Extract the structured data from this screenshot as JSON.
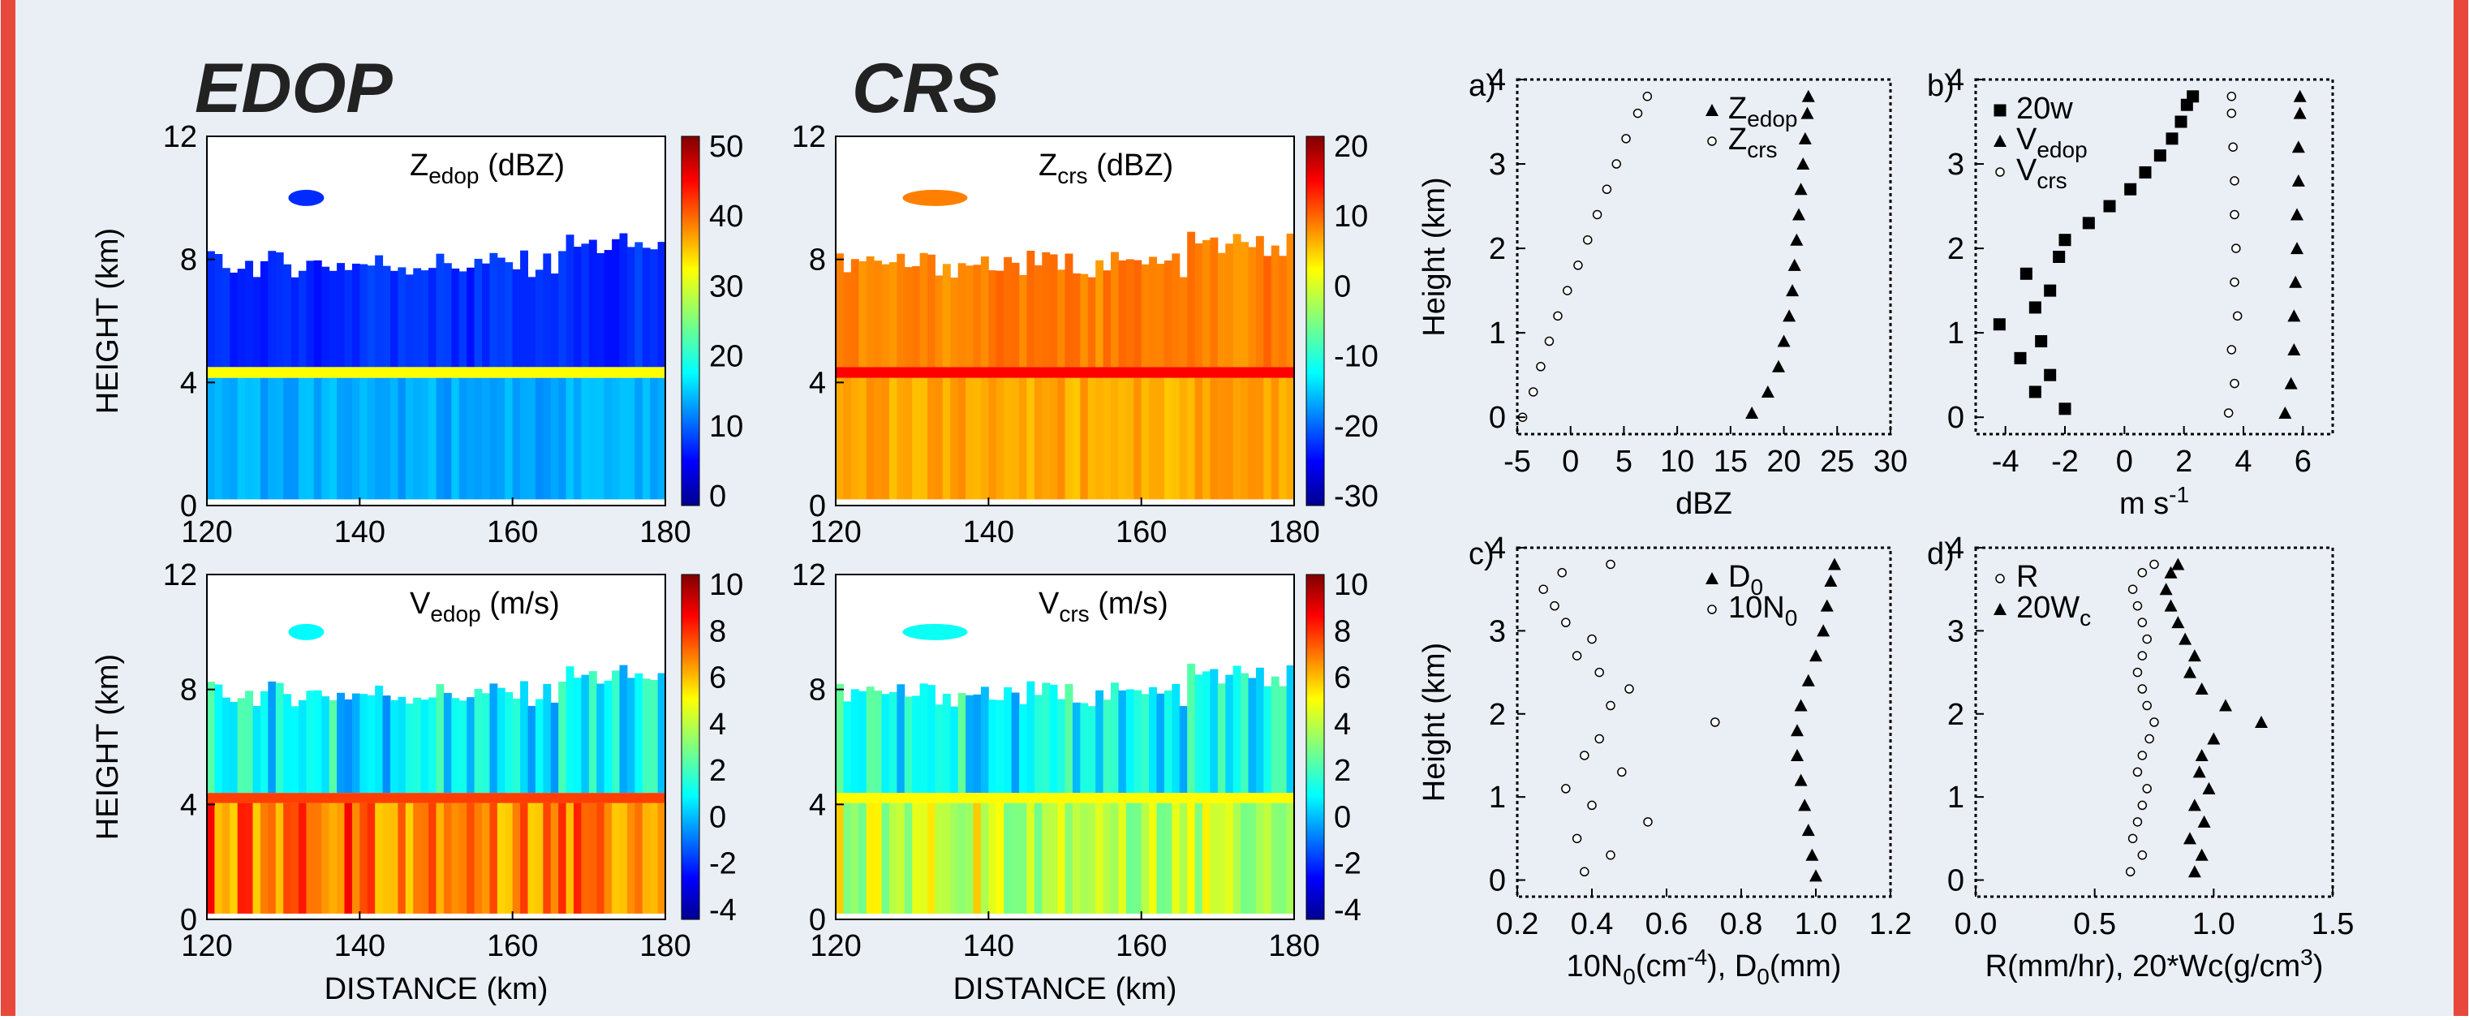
{
  "colors": {
    "border_red": "#e8473b",
    "background": "#e9eff5",
    "title_dark": "#222222"
  },
  "page": {
    "col_title_left": "EDOP",
    "col_title_right": "CRS"
  },
  "chart_data": [
    {
      "id": "zedop",
      "type": "heatmap",
      "title_main": "Z",
      "title_sub": "edop",
      "title_unit": "(dBZ)",
      "xlabel": "",
      "ylabel": "HEIGHT (km)",
      "xticks": [
        120,
        140,
        160,
        180
      ],
      "yticks": [
        0,
        4,
        8,
        12
      ],
      "xlim": [
        120,
        180
      ],
      "ylim": [
        0,
        12
      ],
      "colorbar": {
        "ticks": [
          "50",
          "40",
          "30",
          "20",
          "10",
          "0"
        ],
        "range": [
          0,
          50
        ]
      },
      "field": {
        "band": 20,
        "melt_layer_height": 4.3,
        "melt_value": 32,
        "below_value": 14,
        "above_value": 8,
        "top_height": 7.6
      }
    },
    {
      "id": "zcrs",
      "type": "heatmap",
      "title_main": "Z",
      "title_sub": "crs",
      "title_unit": "(dBZ)",
      "xlabel": "",
      "ylabel": "",
      "xticks": [
        120,
        140,
        160,
        180
      ],
      "yticks": [
        0,
        4,
        8,
        12
      ],
      "xlim": [
        120,
        180
      ],
      "ylim": [
        0,
        12
      ],
      "colorbar": {
        "ticks": [
          "20",
          "10",
          "0",
          "-10",
          "-20",
          "-30"
        ],
        "range": [
          -30,
          20
        ]
      },
      "field": {
        "band": 20,
        "melt_layer_height": 4.3,
        "melt_value": 14,
        "below_value": 6,
        "above_value": 8,
        "top_height": 7.6
      }
    },
    {
      "id": "vedop",
      "type": "heatmap",
      "title_main": "V",
      "title_sub": "edop",
      "title_unit": "(m/s)",
      "xlabel": "DISTANCE (km)",
      "ylabel": "HEIGHT (km)",
      "xticks": [
        120,
        140,
        160,
        180
      ],
      "yticks": [
        0,
        4,
        8,
        12
      ],
      "xlim": [
        120,
        180
      ],
      "ylim": [
        0,
        12
      ],
      "colorbar": {
        "ticks": [
          "10",
          "8",
          "6",
          "4",
          "2",
          "0",
          "-2",
          "-4"
        ],
        "range": [
          -4,
          10
        ]
      },
      "field": {
        "band": 20,
        "melt_layer_height": 4.2,
        "melt_value": 7.5,
        "below_value": 7,
        "above_value": 1,
        "top_height": 7.6
      }
    },
    {
      "id": "vcrs",
      "type": "heatmap",
      "title_main": "V",
      "title_sub": "crs",
      "title_unit": "(m/s)",
      "xlabel": "DISTANCE (km)",
      "ylabel": "",
      "xticks": [
        120,
        140,
        160,
        180
      ],
      "yticks": [
        0,
        4,
        8,
        12
      ],
      "xlim": [
        120,
        180
      ],
      "ylim": [
        0,
        12
      ],
      "colorbar": {
        "ticks": [
          "10",
          "8",
          "6",
          "4",
          "2",
          "0",
          "-2",
          "-4"
        ],
        "range": [
          -4,
          10
        ]
      },
      "field": {
        "band": 20,
        "melt_layer_height": 4.2,
        "melt_value": 5,
        "below_value": 4.2,
        "above_value": 1.2,
        "top_height": 7.6
      }
    },
    {
      "id": "a",
      "type": "scatter",
      "panel_label": "a)",
      "xlabel": "dBZ",
      "ylabel": "Height (km)",
      "xlim": [
        -5,
        30
      ],
      "ylim": [
        -0.2,
        4.0
      ],
      "xticks": [
        "-5",
        "0",
        "5",
        "10",
        "15",
        "20",
        "25",
        "30"
      ],
      "yticks": [
        "0",
        "1",
        "2",
        "3",
        "4"
      ],
      "legend": [
        {
          "marker": "triangle",
          "main": "Z",
          "sub": "edop"
        },
        {
          "marker": "circle",
          "main": "Z",
          "sub": "crs"
        }
      ],
      "series": [
        {
          "marker": "triangle",
          "y": [
            0.05,
            0.3,
            0.6,
            0.9,
            1.2,
            1.5,
            1.8,
            2.1,
            2.4,
            2.7,
            3.0,
            3.3,
            3.6,
            3.8
          ],
          "x": [
            17,
            18.5,
            19.5,
            20,
            20.5,
            20.8,
            21,
            21.2,
            21.4,
            21.6,
            21.8,
            22,
            22.2,
            22.3
          ]
        },
        {
          "marker": "circle",
          "y": [
            0.0,
            0.3,
            0.6,
            0.9,
            1.2,
            1.5,
            1.8,
            2.1,
            2.4,
            2.7,
            3.0,
            3.3,
            3.6,
            3.8
          ],
          "x": [
            -4.5,
            -3.5,
            -2.8,
            -2,
            -1.2,
            -0.3,
            0.7,
            1.6,
            2.5,
            3.4,
            4.3,
            5.2,
            6.3,
            7.2
          ]
        }
      ]
    },
    {
      "id": "b",
      "type": "scatter",
      "panel_label": "b)",
      "xlabel": "m s",
      "xlabel_sup": "-1",
      "ylabel": "",
      "xlim": [
        -5,
        7
      ],
      "ylim": [
        -0.2,
        4.0
      ],
      "xticks": [
        "-4",
        "-2",
        "0",
        "2",
        "4",
        "6"
      ],
      "yticks": [
        "0",
        "1",
        "2",
        "3",
        "4"
      ],
      "legend": [
        {
          "marker": "square",
          "main": "20w",
          "sub": ""
        },
        {
          "marker": "triangle",
          "main": "V",
          "sub": "edop"
        },
        {
          "marker": "circle",
          "main": "V",
          "sub": "crs"
        }
      ],
      "series": [
        {
          "marker": "square",
          "y": [
            0.1,
            0.3,
            0.5,
            0.7,
            0.9,
            1.1,
            1.3,
            1.5,
            1.7,
            1.9,
            2.1,
            2.3,
            2.5,
            2.7,
            2.9,
            3.1,
            3.3,
            3.5,
            3.7,
            3.8
          ],
          "x": [
            -2,
            -3,
            -2.5,
            -3.5,
            -2.8,
            -4.2,
            -3,
            -2.5,
            -3.3,
            -2.2,
            -2,
            -1.2,
            -0.5,
            0.2,
            0.7,
            1.2,
            1.6,
            1.9,
            2.1,
            2.3
          ]
        },
        {
          "marker": "triangle",
          "y": [
            0.05,
            0.4,
            0.8,
            1.2,
            1.6,
            2.0,
            2.4,
            2.8,
            3.2,
            3.6,
            3.8
          ],
          "x": [
            5.4,
            5.6,
            5.7,
            5.7,
            5.75,
            5.8,
            5.8,
            5.85,
            5.85,
            5.9,
            5.9
          ]
        },
        {
          "marker": "circle",
          "y": [
            0.05,
            0.4,
            0.8,
            1.2,
            1.6,
            2.0,
            2.4,
            2.8,
            3.2,
            3.6,
            3.8
          ],
          "x": [
            3.5,
            3.7,
            3.6,
            3.8,
            3.7,
            3.75,
            3.7,
            3.7,
            3.65,
            3.6,
            3.6
          ]
        }
      ]
    },
    {
      "id": "c",
      "type": "scatter",
      "panel_label": "c)",
      "xlabel": "10N",
      "xlabel_sub": "0",
      "xlabel_sup": "-4",
      "xlabel_pre": "(cm",
      "xlabel_post": "), D",
      "xlabel_sub2": "0",
      "xlabel_end": "(mm)",
      "ylabel": "Height (km)",
      "xlim": [
        0.2,
        1.2
      ],
      "ylim": [
        -0.2,
        4.0
      ],
      "xticks": [
        "0.2",
        "0.4",
        "0.6",
        "0.8",
        "1.0",
        "1.2"
      ],
      "yticks": [
        "0",
        "1",
        "2",
        "3",
        "4"
      ],
      "legend": [
        {
          "marker": "triangle",
          "main": "D",
          "sub": "0"
        },
        {
          "marker": "circle",
          "main": "10N",
          "sub": "0"
        }
      ],
      "series": [
        {
          "marker": "triangle",
          "y": [
            0.05,
            0.3,
            0.6,
            0.9,
            1.2,
            1.5,
            1.8,
            2.1,
            2.4,
            2.7,
            3.0,
            3.3,
            3.6,
            3.8
          ],
          "x": [
            1.0,
            0.99,
            0.98,
            0.97,
            0.96,
            0.95,
            0.95,
            0.96,
            0.98,
            1.0,
            1.02,
            1.03,
            1.04,
            1.05
          ]
        },
        {
          "marker": "circle",
          "y": [
            0.1,
            0.3,
            0.5,
            0.7,
            0.9,
            1.1,
            1.3,
            1.5,
            1.7,
            1.9,
            2.1,
            2.3,
            2.5,
            2.7,
            2.9,
            3.1,
            3.3,
            3.5,
            3.7,
            3.8
          ],
          "x": [
            0.38,
            0.45,
            0.36,
            0.55,
            0.4,
            0.33,
            0.48,
            0.38,
            0.42,
            0.73,
            0.45,
            0.5,
            0.42,
            0.36,
            0.4,
            0.33,
            0.3,
            0.27,
            0.32,
            0.45
          ]
        }
      ]
    },
    {
      "id": "d",
      "type": "scatter",
      "panel_label": "d)",
      "xlabel": "R(mm/hr), 20*Wc(g/cm",
      "xlabel_sup": "3",
      "xlabel_end": ")",
      "ylabel": "",
      "xlim": [
        0,
        1.5
      ],
      "ylim": [
        -0.2,
        4.0
      ],
      "xticks": [
        "0.0",
        "0.5",
        "1.0",
        "1.5"
      ],
      "yticks": [
        "0",
        "1",
        "2",
        "3",
        "4"
      ],
      "legend": [
        {
          "marker": "circle",
          "main": "R",
          "sub": ""
        },
        {
          "marker": "triangle",
          "main": "20W",
          "sub": "c"
        }
      ],
      "series": [
        {
          "marker": "circle",
          "y": [
            0.1,
            0.3,
            0.5,
            0.7,
            0.9,
            1.1,
            1.3,
            1.5,
            1.7,
            1.9,
            2.1,
            2.3,
            2.5,
            2.7,
            2.9,
            3.1,
            3.3,
            3.5,
            3.7,
            3.8
          ],
          "x": [
            0.65,
            0.7,
            0.66,
            0.68,
            0.7,
            0.72,
            0.68,
            0.7,
            0.73,
            0.75,
            0.72,
            0.7,
            0.68,
            0.7,
            0.72,
            0.7,
            0.68,
            0.66,
            0.7,
            0.75
          ]
        },
        {
          "marker": "triangle",
          "y": [
            0.1,
            0.3,
            0.5,
            0.7,
            0.9,
            1.1,
            1.3,
            1.5,
            1.7,
            1.9,
            2.1,
            2.3,
            2.5,
            2.7,
            2.9,
            3.1,
            3.3,
            3.5,
            3.7,
            3.8
          ],
          "x": [
            0.92,
            0.95,
            0.9,
            0.96,
            0.92,
            0.98,
            0.94,
            0.95,
            1.0,
            1.2,
            1.05,
            0.95,
            0.9,
            0.92,
            0.88,
            0.85,
            0.82,
            0.8,
            0.82,
            0.85
          ]
        }
      ]
    }
  ]
}
